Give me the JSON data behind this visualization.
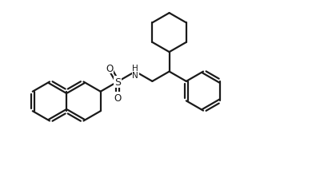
{
  "background_color": "#ffffff",
  "line_color": "#1a1a1a",
  "line_width": 1.6,
  "figure_width": 3.9,
  "figure_height": 2.28,
  "dpi": 100,
  "xlim": [
    0.0,
    3.9
  ],
  "ylim": [
    0.0,
    2.28
  ]
}
